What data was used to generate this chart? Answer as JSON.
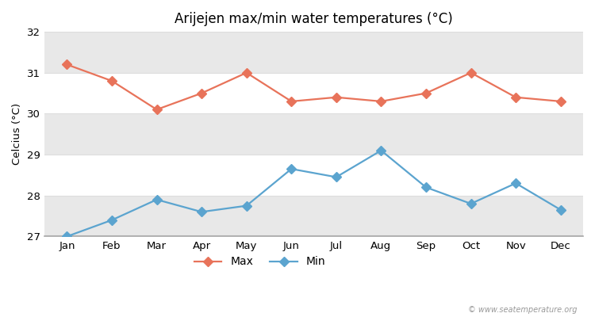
{
  "months": [
    "Jan",
    "Feb",
    "Mar",
    "Apr",
    "May",
    "Jun",
    "Jul",
    "Aug",
    "Sep",
    "Oct",
    "Nov",
    "Dec"
  ],
  "max_temps": [
    31.2,
    30.8,
    30.1,
    30.5,
    31.0,
    30.3,
    30.4,
    30.3,
    30.5,
    31.0,
    30.4,
    30.3
  ],
  "min_temps": [
    27.0,
    27.4,
    27.9,
    27.6,
    27.75,
    28.65,
    28.45,
    29.1,
    28.2,
    27.8,
    28.3,
    27.65
  ],
  "title": "Arijejen max/min water temperatures (°C)",
  "ylabel": "Celcius (°C)",
  "ylim_min": 27,
  "ylim_max": 32,
  "yticks": [
    27,
    28,
    29,
    30,
    31,
    32
  ],
  "max_color": "#e8735a",
  "min_color": "#5ba4cf",
  "fig_bg_color": "#ffffff",
  "plot_bg_color": "#ffffff",
  "band_color": "#e8e8e8",
  "spine_color": "#aaaaaa",
  "watermark": "© www.seatemperature.org",
  "legend_max": "Max",
  "legend_min": "Min",
  "band_ranges": [
    [
      31,
      32
    ],
    [
      29,
      30
    ],
    [
      27,
      28
    ]
  ]
}
